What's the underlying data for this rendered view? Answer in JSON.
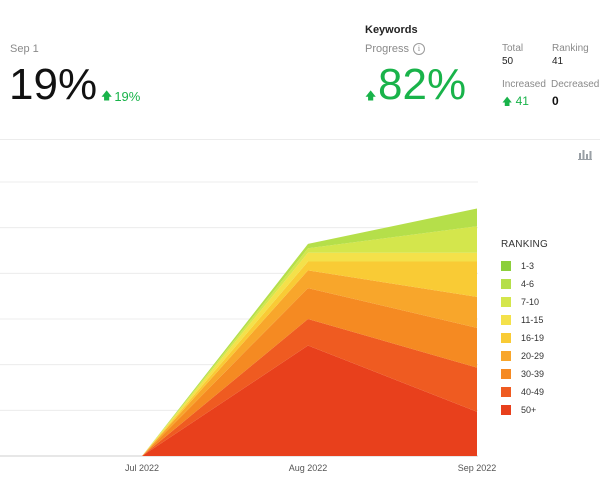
{
  "summary": {
    "date_label": "Sep 1",
    "value": "19%",
    "delta": "19%"
  },
  "keywords": {
    "title": "Keywords",
    "progress_label": "Progress",
    "progress_value": "82%",
    "total_label": "Total",
    "total_value": "50",
    "ranking_label": "Ranking",
    "ranking_value": "41",
    "increased_label": "Increased",
    "increased_value": "41",
    "decreased_label": "Decreased",
    "decreased_value": "0"
  },
  "colors": {
    "positive": "#19b34a"
  },
  "icons": [
    "info-icon",
    "arrow-up-icon",
    "bar-chart-icon"
  ],
  "chart_data": {
    "type": "area",
    "stacked": true,
    "x": [
      "Jul 2022",
      "Aug 2022",
      "Sep 2022"
    ],
    "legend_title": "RANKING",
    "legend_position": "right",
    "grid": true,
    "series": [
      {
        "name": "50+",
        "color": "#e8401c",
        "values": [
          0,
          25,
          10
        ]
      },
      {
        "name": "40-49",
        "color": "#ef5b21",
        "values": [
          0,
          6,
          10
        ]
      },
      {
        "name": "30-39",
        "color": "#f58a22",
        "values": [
          0,
          7,
          9
        ]
      },
      {
        "name": "20-29",
        "color": "#f8a62b",
        "values": [
          0,
          4,
          7
        ]
      },
      {
        "name": "16-19",
        "color": "#f9cb35",
        "values": [
          0,
          2,
          8
        ]
      },
      {
        "name": "11-15",
        "color": "#f4e14a",
        "values": [
          0,
          2,
          2
        ]
      },
      {
        "name": "7-10",
        "color": "#d4e64c",
        "values": [
          0,
          1,
          6
        ]
      },
      {
        "name": "4-6",
        "color": "#b5df4a",
        "values": [
          0,
          1,
          4
        ]
      },
      {
        "name": "1-3",
        "color": "#8ccf3c",
        "values": [
          0,
          0,
          0
        ]
      }
    ],
    "ylim": [
      0,
      62
    ]
  }
}
